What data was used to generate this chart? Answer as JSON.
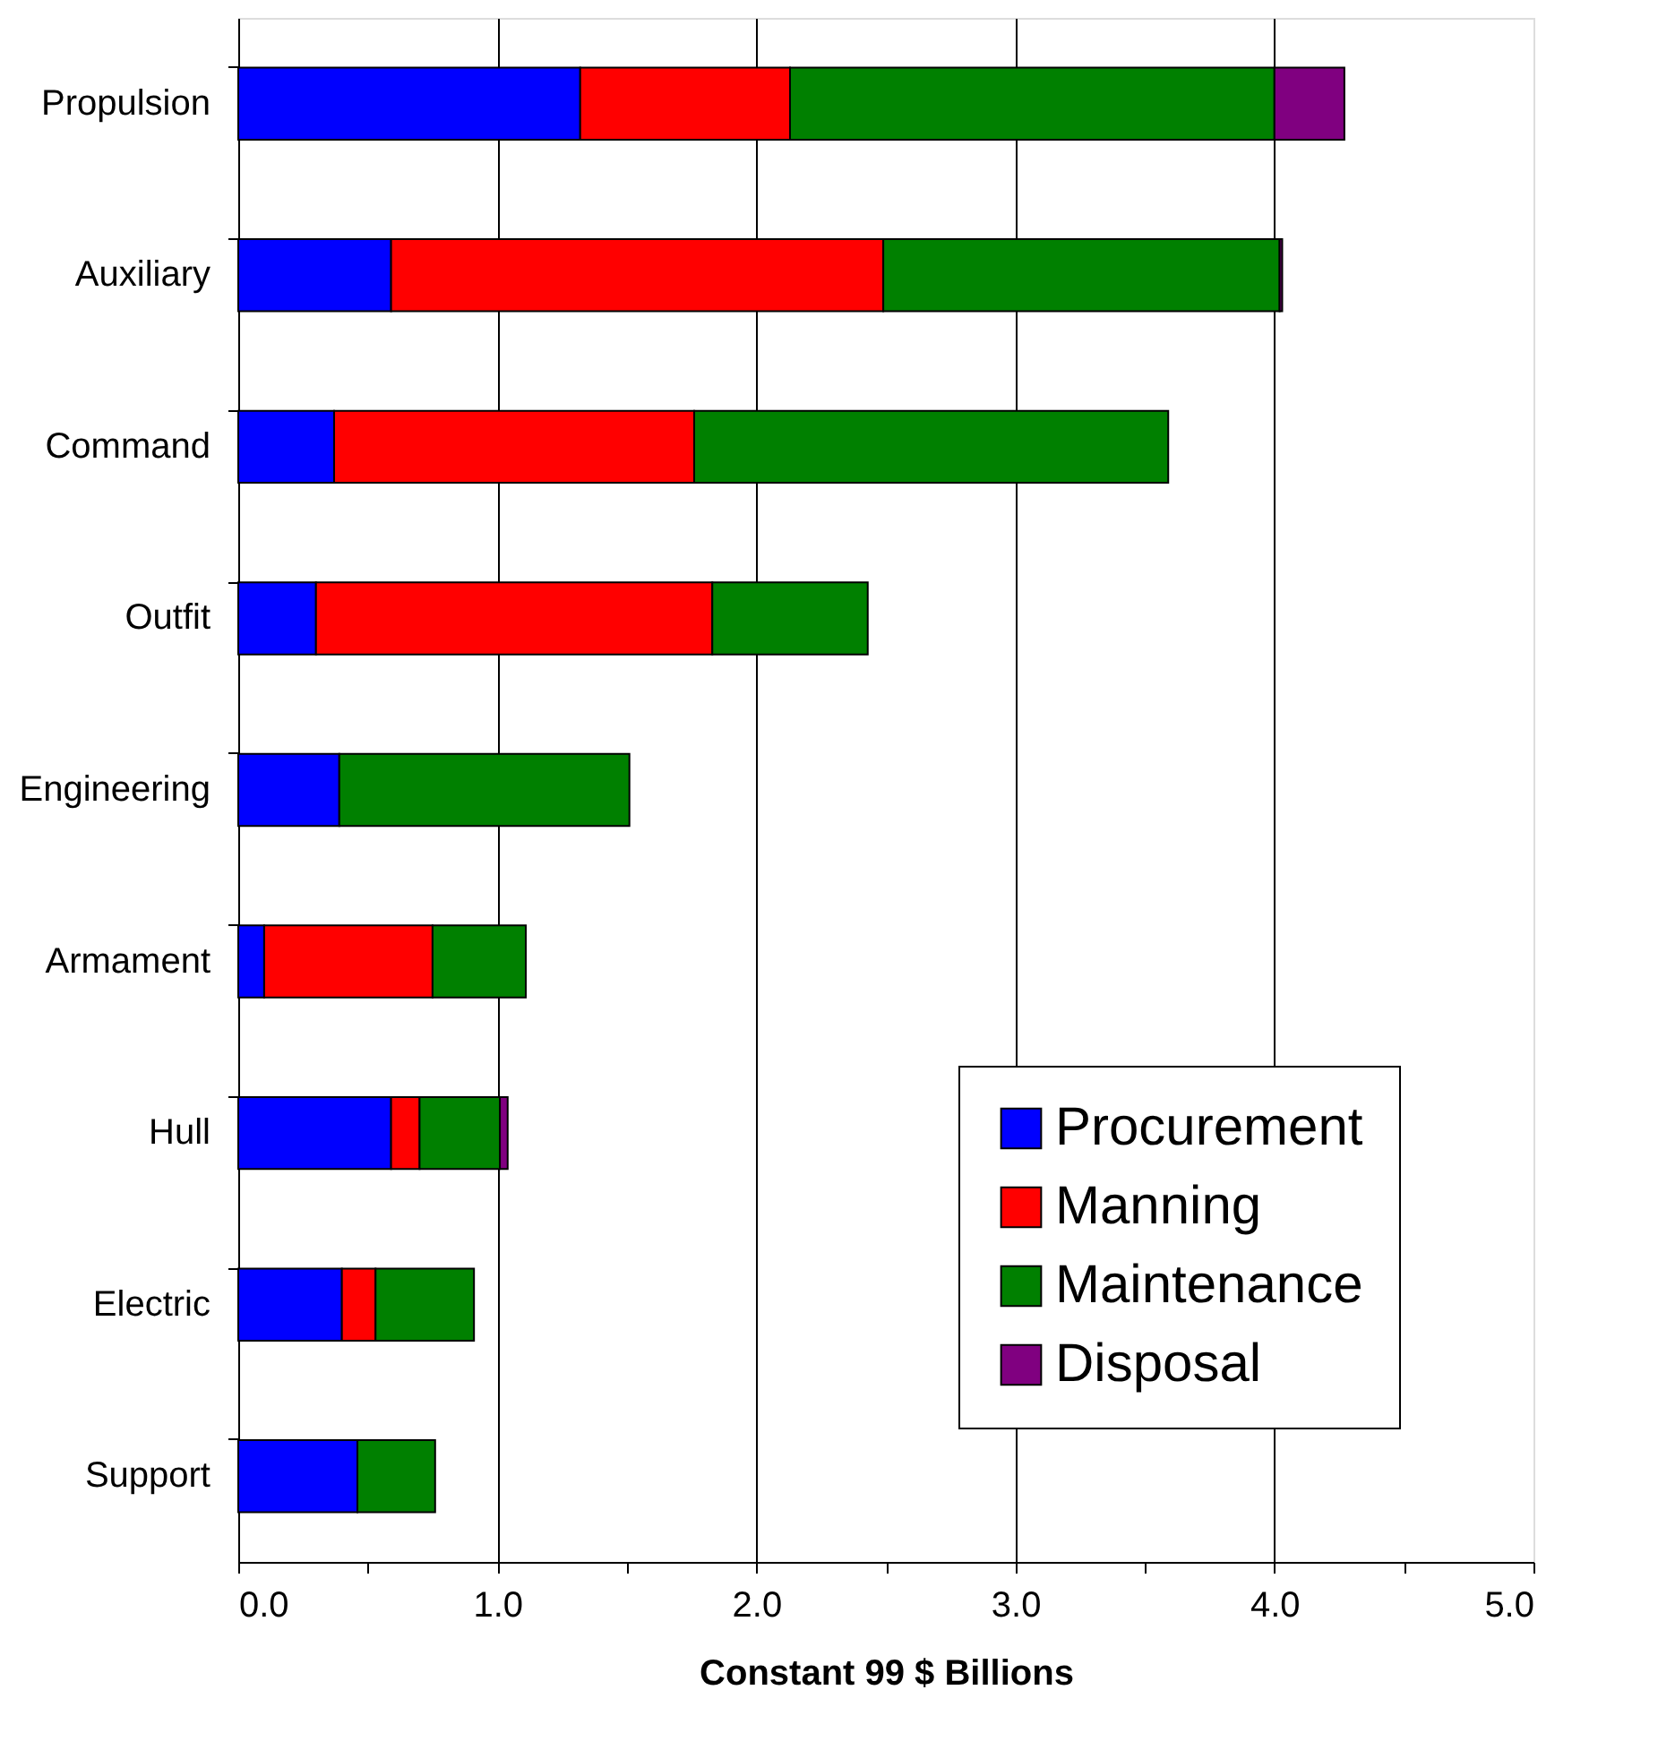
{
  "chart_data": {
    "type": "bar",
    "orientation": "horizontal",
    "stacked": true,
    "xlabel": "Constant 99 $ Billions",
    "categories": [
      "Propulsion",
      "Auxiliary",
      "Command",
      "Outfit",
      "Engineering",
      "Armament",
      "Hull",
      "Electric",
      "Support"
    ],
    "series": [
      {
        "name": "Procurement",
        "color": "#0000ff",
        "values": [
          1.32,
          0.59,
          0.37,
          0.3,
          0.39,
          0.1,
          0.59,
          0.4,
          0.46
        ]
      },
      {
        "name": "Manning",
        "color": "#ff0000",
        "values": [
          0.81,
          1.9,
          1.39,
          1.53,
          null,
          0.65,
          0.11,
          0.13,
          null
        ]
      },
      {
        "name": "Maintenance",
        "color": "#008000",
        "values": [
          1.87,
          1.53,
          1.83,
          0.6,
          1.12,
          0.36,
          0.31,
          0.38,
          0.3
        ]
      },
      {
        "name": "Disposal",
        "color": "#800080",
        "values": [
          0.27,
          0.01,
          null,
          null,
          null,
          null,
          0.03,
          null,
          null
        ]
      }
    ],
    "xlim": [
      0,
      5
    ],
    "xticks": [
      {
        "value": 0,
        "label": "0.0"
      },
      {
        "value": 0.5,
        "label": null
      },
      {
        "value": 1,
        "label": "1.0"
      },
      {
        "value": 1.5,
        "label": null
      },
      {
        "value": 2,
        "label": "2.0"
      },
      {
        "value": 2.5,
        "label": null
      },
      {
        "value": 3,
        "label": "3.0"
      },
      {
        "value": 3.5,
        "label": null
      },
      {
        "value": 4,
        "label": "4.0"
      },
      {
        "value": 4.5,
        "label": null
      },
      {
        "value": 5,
        "label": "5.0"
      }
    ],
    "grid": "x",
    "legend": "bottom right"
  }
}
